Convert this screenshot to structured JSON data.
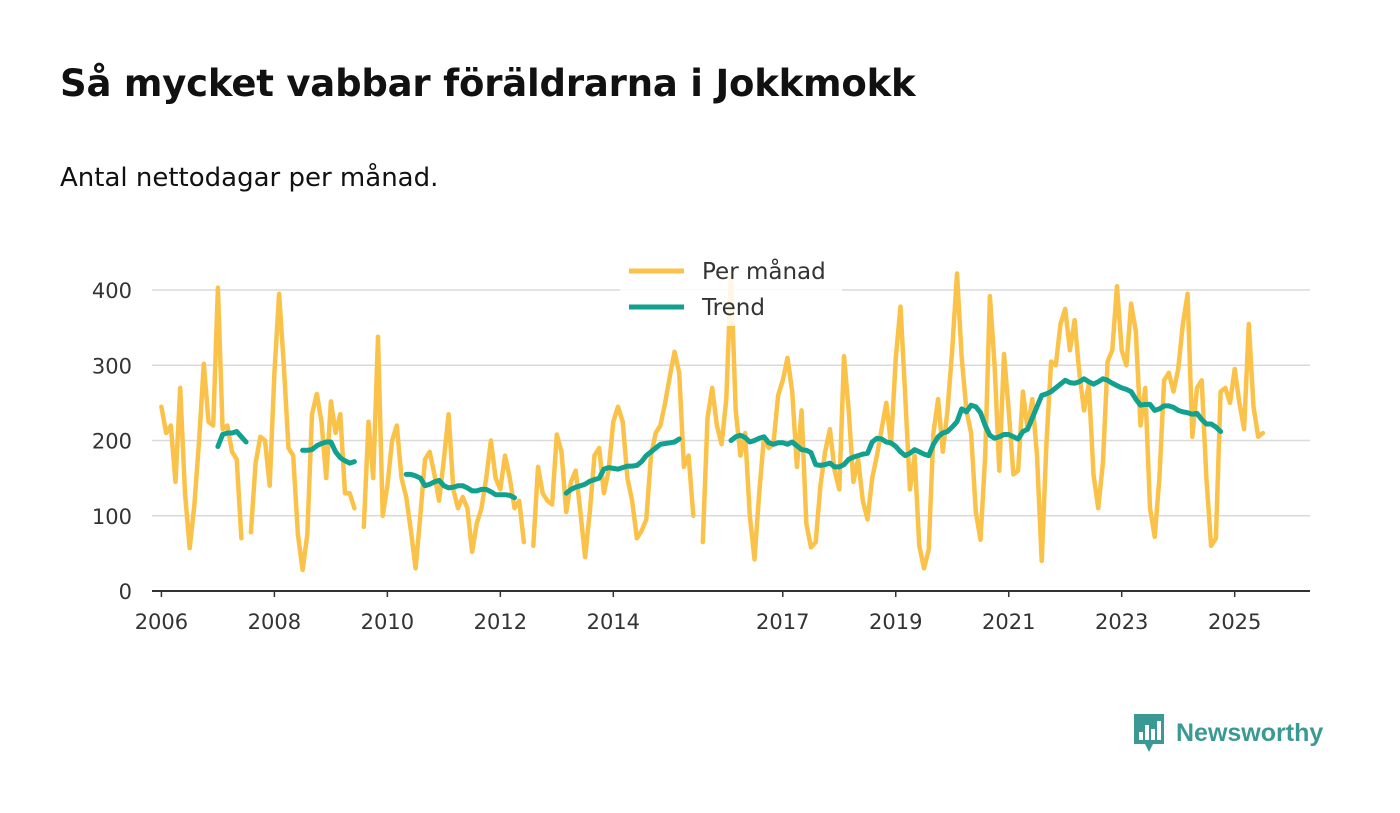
{
  "title": "Så mycket vabbar föräldrarna i Jokkmokk",
  "subtitle": "Antal nettodagar per månad.",
  "brand": {
    "name": "Newsworthy",
    "icon": "bar-chart-speech-bubble-icon",
    "color": "#3a9a93"
  },
  "chart_data": {
    "type": "line",
    "title": "Så mycket vabbar föräldrarna i Jokkmokk",
    "subtitle": "Antal nettodagar per månad.",
    "xlabel": "",
    "ylabel": "",
    "x_ticks": [
      "2006",
      "2008",
      "2010",
      "2012",
      "2014",
      "2017",
      "2019",
      "2021",
      "2023",
      "2025"
    ],
    "y_ticks": [
      0,
      100,
      200,
      300,
      400
    ],
    "xlim": [
      "2005-11",
      "2026-05"
    ],
    "ylim": [
      0,
      420
    ],
    "grid": true,
    "legend": "top-center",
    "x_start": "2006-01",
    "x_step": "month",
    "series": [
      {
        "name": "Per månad",
        "color": "#fbc24a",
        "values": [
          245,
          210,
          220,
          145,
          270,
          130,
          57,
          115,
          200,
          302,
          225,
          220,
          403,
          215,
          220,
          185,
          175,
          70,
          null,
          78,
          170,
          205,
          200,
          140,
          290,
          395,
          300,
          190,
          180,
          75,
          28,
          75,
          235,
          262,
          225,
          150,
          252,
          210,
          235,
          130,
          130,
          110,
          null,
          85,
          225,
          150,
          338,
          100,
          140,
          200,
          220,
          150,
          125,
          80,
          30,
          100,
          175,
          185,
          155,
          120,
          175,
          235,
          135,
          110,
          125,
          110,
          52,
          90,
          110,
          150,
          200,
          150,
          135,
          180,
          150,
          110,
          120,
          65,
          null,
          60,
          165,
          130,
          120,
          115,
          208,
          185,
          105,
          145,
          160,
          105,
          45,
          105,
          180,
          190,
          130,
          160,
          225,
          245,
          225,
          150,
          120,
          70,
          80,
          95,
          180,
          210,
          220,
          250,
          285,
          318,
          290,
          165,
          180,
          100,
          null,
          65,
          230,
          270,
          220,
          195,
          255,
          420,
          240,
          180,
          210,
          100,
          42,
          130,
          205,
          190,
          195,
          260,
          280,
          310,
          265,
          165,
          240,
          90,
          58,
          65,
          140,
          185,
          215,
          160,
          135,
          312,
          240,
          145,
          175,
          120,
          95,
          150,
          180,
          215,
          250,
          195,
          310,
          378,
          260,
          135,
          180,
          60,
          30,
          55,
          210,
          255,
          185,
          240,
          320,
          422,
          310,
          240,
          210,
          105,
          68,
          180,
          392,
          300,
          160,
          315,
          240,
          155,
          160,
          265,
          215,
          255,
          180,
          40,
          195,
          305,
          300,
          355,
          375,
          320,
          360,
          290,
          240,
          275,
          155,
          110,
          170,
          305,
          320,
          405,
          320,
          300,
          382,
          345,
          220,
          270,
          110,
          72,
          150,
          280,
          290,
          265,
          295,
          355,
          395,
          205,
          270,
          280,
          150,
          60,
          70,
          265,
          270,
          250,
          295,
          250,
          215,
          355,
          245,
          205,
          210
        ]
      },
      {
        "name": "Trend",
        "color": "#12a08f",
        "values": [
          null,
          null,
          null,
          null,
          null,
          null,
          null,
          null,
          null,
          null,
          null,
          null,
          192,
          208,
          210,
          210,
          212,
          205,
          198,
          null,
          null,
          null,
          null,
          null,
          null,
          null,
          null,
          null,
          null,
          null,
          187,
          187,
          188,
          193,
          196,
          198,
          198,
          185,
          177,
          173,
          170,
          172,
          null,
          null,
          null,
          null,
          null,
          null,
          null,
          null,
          null,
          null,
          155,
          155,
          153,
          150,
          140,
          142,
          145,
          147,
          140,
          137,
          138,
          140,
          140,
          137,
          133,
          133,
          135,
          135,
          132,
          128,
          128,
          128,
          127,
          124,
          null,
          null,
          null,
          null,
          null,
          null,
          null,
          null,
          null,
          null,
          130,
          135,
          138,
          140,
          142,
          146,
          148,
          150,
          162,
          164,
          163,
          162,
          164,
          166,
          166,
          167,
          172,
          180,
          185,
          190,
          195,
          196,
          197,
          198,
          202,
          null,
          null,
          null,
          null,
          null,
          null,
          null,
          null,
          null,
          null,
          200,
          205,
          207,
          204,
          198,
          200,
          203,
          205,
          197,
          195,
          197,
          197,
          195,
          198,
          193,
          188,
          187,
          184,
          168,
          167,
          168,
          170,
          165,
          165,
          168,
          175,
          178,
          180,
          182,
          183,
          198,
          203,
          202,
          198,
          197,
          192,
          185,
          180,
          183,
          188,
          185,
          182,
          180,
          195,
          205,
          210,
          212,
          218,
          225,
          242,
          238,
          247,
          245,
          237,
          220,
          207,
          203,
          205,
          208,
          208,
          205,
          202,
          212,
          215,
          230,
          245,
          260,
          262,
          265,
          270,
          275,
          280,
          277,
          276,
          278,
          282,
          278,
          275,
          278,
          282,
          280,
          276,
          273,
          270,
          268,
          265,
          255,
          247,
          248,
          248,
          240,
          242,
          246,
          246,
          244,
          240,
          238,
          237,
          235,
          236,
          228,
          222,
          222,
          218,
          212
        ]
      }
    ]
  }
}
